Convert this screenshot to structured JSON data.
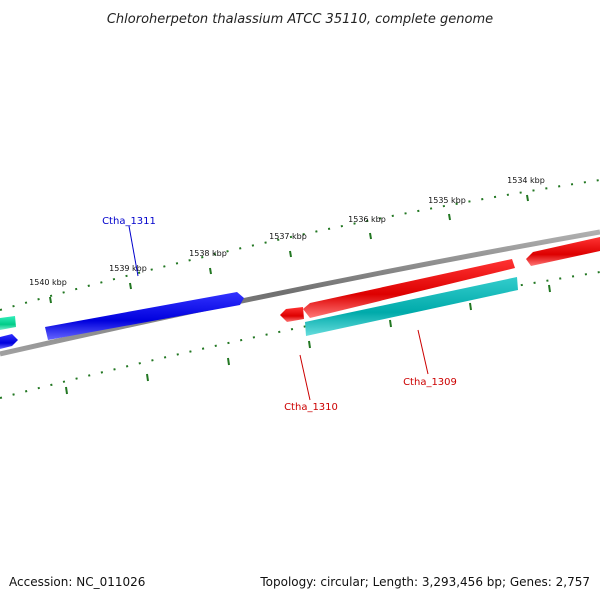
{
  "title": "Chloroherpeton thalassium ATCC 35110, complete genome",
  "footer": {
    "accession": "Accession: NC_011026",
    "summary": "Topology: circular; Length: 3,293,456 bp; Genes: 2,757"
  },
  "ticks": [
    "1534 kbp",
    "1535 kbp",
    "1536 kbp",
    "1537 kbp",
    "1538 kbp",
    "1539 kbp",
    "1540 kbp"
  ],
  "genes": [
    {
      "label": "Ctha_1311",
      "color": "#0000cc"
    },
    {
      "label": "Ctha_1310",
      "color": "#cc0000"
    },
    {
      "label": "Ctha_1309",
      "color": "#cc0000"
    }
  ],
  "colors": {
    "forward_strand": "#0000ee",
    "reverse_strand_red": "#ee0000",
    "reverse_complement_cyan": "#00bbbb",
    "other_green": "#00dd99",
    "backbone": "#808080",
    "tick_marks": "#227722"
  }
}
